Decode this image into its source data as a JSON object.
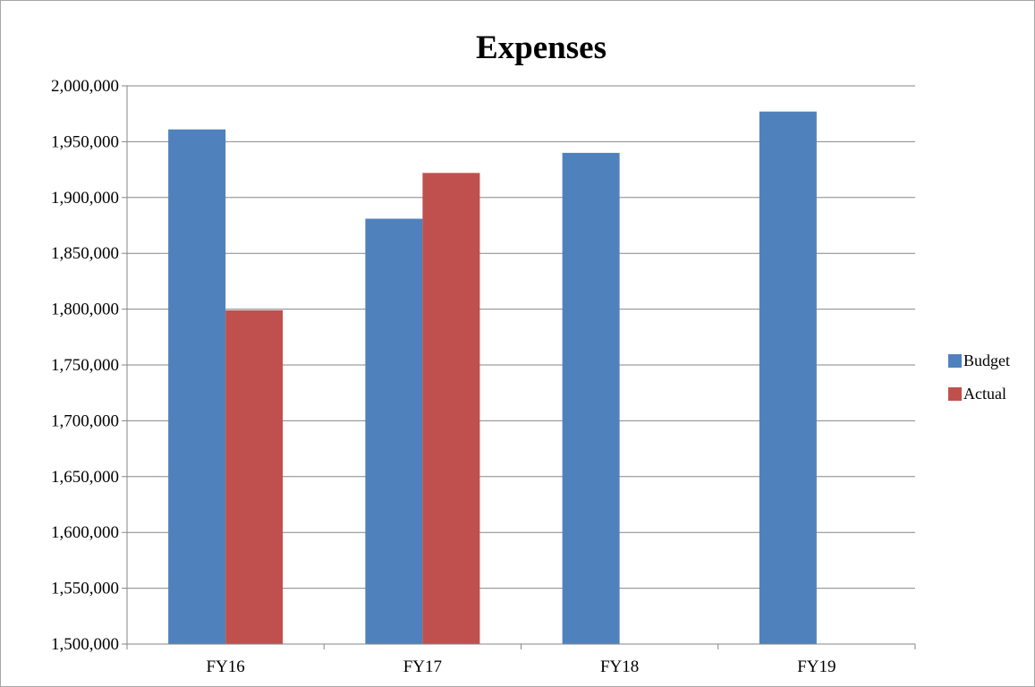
{
  "chart_data": {
    "type": "bar",
    "title": "Expenses",
    "xlabel": "",
    "ylabel": "",
    "categories": [
      "FY16",
      "FY17",
      "FY18",
      "FY19"
    ],
    "series": [
      {
        "name": "Budget",
        "color": "#4f81bd",
        "values": [
          1961000,
          1881000,
          1940000,
          1977000
        ]
      },
      {
        "name": "Actual",
        "color": "#c0504d",
        "values": [
          1799000,
          1922000,
          null,
          null
        ]
      }
    ],
    "ylim": [
      1500000,
      2000000
    ],
    "yticks": [
      "1,500,000",
      "1,550,000",
      "1,600,000",
      "1,650,000",
      "1,700,000",
      "1,750,000",
      "1,800,000",
      "1,850,000",
      "1,900,000",
      "1,950,000",
      "2,000,000"
    ],
    "grid": true,
    "legend_position": "right"
  }
}
